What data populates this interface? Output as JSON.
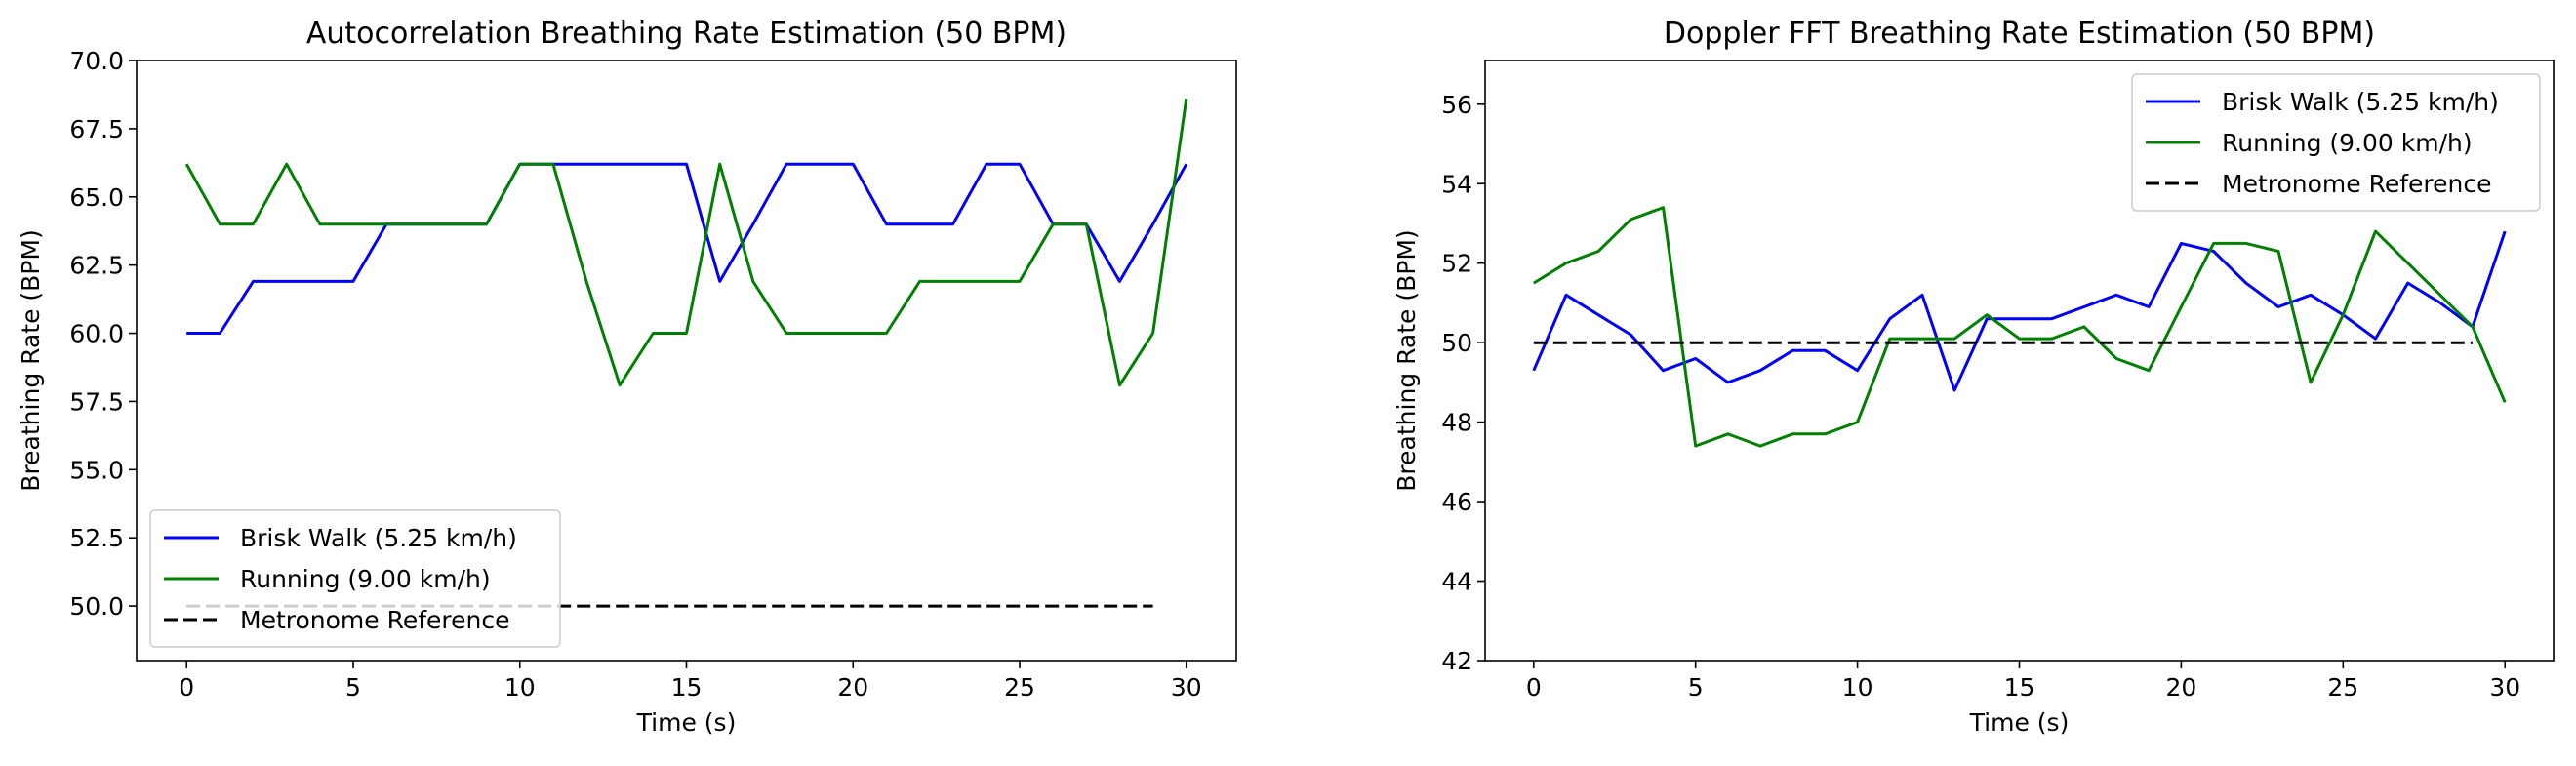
{
  "chart_data": [
    {
      "type": "line",
      "title": "Autocorrelation Breathing Rate Estimation (50 BPM)",
      "xlabel": "Time (s)",
      "ylabel": "Breathing Rate (BPM)",
      "xlim": [
        -1.5,
        31.5
      ],
      "ylim": [
        48.0,
        70.0
      ],
      "xticks": [
        0,
        5,
        10,
        15,
        20,
        25,
        30
      ],
      "xtick_labels": [
        "0",
        "5",
        "10",
        "15",
        "20",
        "25",
        "30"
      ],
      "yticks": [
        50.0,
        52.5,
        55.0,
        57.5,
        60.0,
        62.5,
        65.0,
        67.5,
        70.0
      ],
      "ytick_labels": [
        "50.0",
        "52.5",
        "55.0",
        "57.5",
        "60.0",
        "62.5",
        "65.0",
        "67.5",
        "70.0"
      ],
      "grid": false,
      "legend_position": "lower-left",
      "series": [
        {
          "name": "Brisk Walk (5.25 km/h)",
          "color": "#0000ff",
          "dash": "solid",
          "x": [
            0,
            1,
            2,
            3,
            4,
            5,
            6,
            7,
            8,
            9,
            10,
            11,
            12,
            13,
            14,
            15,
            16,
            17,
            18,
            19,
            20,
            21,
            22,
            23,
            24,
            25,
            26,
            27,
            28,
            29,
            30
          ],
          "y": [
            60.0,
            60.0,
            61.9,
            61.9,
            61.9,
            61.9,
            64.0,
            64.0,
            64.0,
            64.0,
            66.2,
            66.2,
            66.2,
            66.2,
            66.2,
            66.2,
            61.9,
            64.0,
            66.2,
            66.2,
            66.2,
            64.0,
            64.0,
            64.0,
            66.2,
            66.2,
            64.0,
            64.0,
            61.9,
            64.0,
            66.2
          ]
        },
        {
          "name": "Running (9.00 km/h)",
          "color": "#008000",
          "dash": "solid",
          "x": [
            0,
            1,
            2,
            3,
            4,
            5,
            6,
            7,
            8,
            9,
            10,
            11,
            12,
            13,
            14,
            15,
            16,
            17,
            18,
            19,
            20,
            21,
            22,
            23,
            24,
            25,
            26,
            27,
            28,
            29,
            30
          ],
          "y": [
            66.2,
            64.0,
            64.0,
            66.2,
            64.0,
            64.0,
            64.0,
            64.0,
            64.0,
            64.0,
            66.2,
            66.2,
            61.9,
            58.1,
            60.0,
            60.0,
            66.2,
            61.9,
            60.0,
            60.0,
            60.0,
            60.0,
            61.9,
            61.9,
            61.9,
            61.9,
            64.0,
            64.0,
            58.1,
            60.0,
            68.6
          ]
        },
        {
          "name": "Metronome Reference",
          "color": "#000000",
          "dash": "dashed",
          "x": [
            0,
            29
          ],
          "y": [
            50.0,
            50.0
          ]
        }
      ]
    },
    {
      "type": "line",
      "title": "Doppler FFT Breathing Rate Estimation (50 BPM)",
      "xlabel": "Time (s)",
      "ylabel": "Breathing Rate (BPM)",
      "xlim": [
        -1.5,
        31.5
      ],
      "ylim": [
        42.0,
        57.1
      ],
      "xticks": [
        0,
        5,
        10,
        15,
        20,
        25,
        30
      ],
      "xtick_labels": [
        "0",
        "5",
        "10",
        "15",
        "20",
        "25",
        "30"
      ],
      "yticks": [
        42,
        44,
        46,
        48,
        50,
        52,
        54,
        56
      ],
      "ytick_labels": [
        "42",
        "44",
        "46",
        "48",
        "50",
        "52",
        "54",
        "56"
      ],
      "grid": false,
      "legend_position": "upper-right",
      "series": [
        {
          "name": "Brisk Walk (5.25 km/h)",
          "color": "#0000ff",
          "dash": "solid",
          "x": [
            0,
            1,
            2,
            3,
            4,
            5,
            6,
            7,
            8,
            9,
            10,
            11,
            12,
            13,
            14,
            15,
            16,
            17,
            18,
            19,
            20,
            21,
            22,
            23,
            24,
            25,
            26,
            27,
            28,
            29,
            30
          ],
          "y": [
            49.3,
            51.2,
            50.7,
            50.2,
            49.3,
            49.6,
            49.0,
            49.3,
            49.8,
            49.8,
            49.3,
            50.6,
            51.2,
            48.8,
            50.6,
            50.6,
            50.6,
            50.9,
            51.2,
            50.9,
            52.5,
            52.3,
            51.5,
            50.9,
            51.2,
            50.7,
            50.1,
            51.5,
            51.0,
            50.4,
            52.8
          ]
        },
        {
          "name": "Running (9.00 km/h)",
          "color": "#008000",
          "dash": "solid",
          "x": [
            0,
            1,
            2,
            3,
            4,
            5,
            6,
            7,
            8,
            9,
            10,
            11,
            12,
            13,
            14,
            15,
            16,
            17,
            18,
            19,
            20,
            21,
            22,
            23,
            24,
            25,
            26,
            27,
            28,
            29,
            30
          ],
          "y": [
            51.5,
            52.0,
            52.3,
            53.1,
            53.4,
            47.4,
            47.7,
            47.4,
            47.7,
            47.7,
            48.0,
            50.1,
            50.1,
            50.1,
            50.7,
            50.1,
            50.1,
            50.4,
            49.6,
            49.3,
            50.9,
            52.5,
            52.5,
            52.3,
            49.0,
            50.7,
            52.8,
            52.0,
            51.2,
            50.4,
            48.5
          ]
        },
        {
          "name": "Metronome Reference",
          "color": "#000000",
          "dash": "dashed",
          "x": [
            0,
            29
          ],
          "y": [
            50.0,
            50.0
          ]
        }
      ]
    }
  ]
}
